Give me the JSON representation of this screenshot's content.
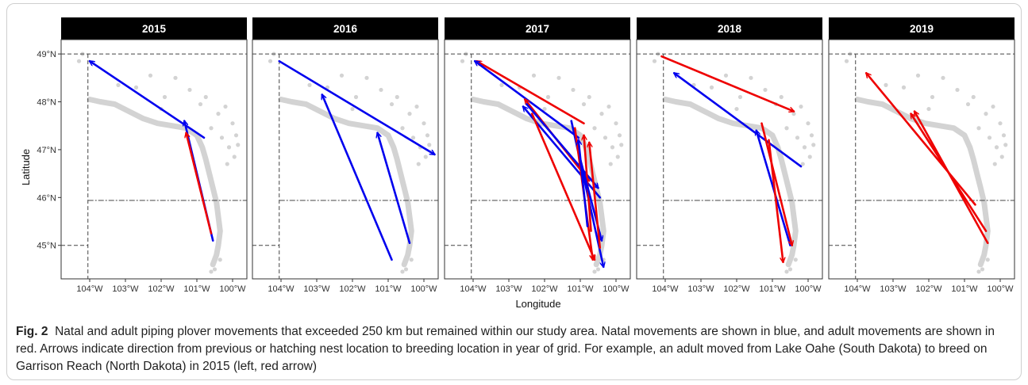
{
  "chart_data": {
    "type": "faceted-map-arrows",
    "xlabel": "Longitude",
    "ylabel": "Latitude",
    "xlim": [
      -104.8,
      -99.6
    ],
    "ylim": [
      44.3,
      49.3
    ],
    "x_ticks": [
      -104,
      -103,
      -102,
      -101,
      -100
    ],
    "x_tick_labels": [
      "104°W",
      "103°W",
      "102°W",
      "101°W",
      "100°W"
    ],
    "y_ticks": [
      45,
      46,
      47,
      48,
      49
    ],
    "y_tick_labels": [
      "45°N",
      "46°N",
      "47°N",
      "48°N",
      "49°N"
    ],
    "series": [
      {
        "name": "Natal",
        "color": "#0000ee"
      },
      {
        "name": "Adult",
        "color": "#ee0000"
      }
    ],
    "boundaries": {
      "north": {
        "lat": 49.0
      },
      "nd_sd": {
        "lat": 45.94,
        "lon_start": -104.05
      },
      "sd_ne": {
        "lat": 45.0,
        "lon_end": -104.05
      },
      "mt_west": {
        "lon": -104.05
      }
    },
    "panels": [
      {
        "year": "2015",
        "arrows": [
          {
            "type": "natal",
            "from": [
              -100.8,
              47.25
            ],
            "to": [
              -104.0,
              48.85
            ]
          },
          {
            "type": "natal",
            "from": [
              -100.55,
              45.1
            ],
            "to": [
              -101.35,
              47.6
            ]
          },
          {
            "type": "adult",
            "from": [
              -100.6,
              45.25
            ],
            "to": [
              -101.3,
              47.35
            ]
          }
        ]
      },
      {
        "year": "2016",
        "arrows": [
          {
            "type": "natal",
            "from": [
              -104.05,
              48.85
            ],
            "to": [
              -99.7,
              46.9
            ]
          },
          {
            "type": "natal",
            "from": [
              -100.9,
              44.7
            ],
            "to": [
              -102.85,
              48.15
            ]
          },
          {
            "type": "natal",
            "from": [
              -100.4,
              45.05
            ],
            "to": [
              -101.3,
              47.35
            ]
          }
        ]
      },
      {
        "year": "2017",
        "arrows": [
          {
            "type": "adult",
            "from": [
              -100.9,
              47.55
            ],
            "to": [
              -103.9,
              48.85
            ]
          },
          {
            "type": "natal",
            "from": [
              -101.05,
              47.25
            ],
            "to": [
              -103.95,
              48.85
            ]
          },
          {
            "type": "adult",
            "from": [
              -100.75,
              46.35
            ],
            "to": [
              -102.55,
              48.05
            ]
          },
          {
            "type": "natal",
            "from": [
              -100.45,
              46.0
            ],
            "to": [
              -102.6,
              47.9
            ]
          },
          {
            "type": "adult",
            "from": [
              -102.35,
              47.75
            ],
            "to": [
              -100.6,
              44.7
            ]
          },
          {
            "type": "natal",
            "from": [
              -101.25,
              47.6
            ],
            "to": [
              -100.35,
              44.55
            ]
          },
          {
            "type": "natal",
            "from": [
              -102.5,
              47.95
            ],
            "to": [
              -100.5,
              46.2
            ]
          },
          {
            "type": "adult",
            "from": [
              -101.15,
              47.45
            ],
            "to": [
              -100.65,
              44.7
            ]
          },
          {
            "type": "adult",
            "from": [
              -100.7,
              45.3
            ],
            "to": [
              -100.9,
              47.3
            ]
          },
          {
            "type": "natal",
            "from": [
              -100.8,
              45.4
            ],
            "to": [
              -101.05,
              47.2
            ]
          },
          {
            "type": "natal",
            "from": [
              -101.0,
              46.8
            ],
            "to": [
              -100.4,
              45.1
            ]
          },
          {
            "type": "adult",
            "from": [
              -100.45,
              44.95
            ],
            "to": [
              -100.75,
              47.15
            ]
          }
        ]
      },
      {
        "year": "2018",
        "arrows": [
          {
            "type": "adult",
            "from": [
              -104.1,
              48.95
            ],
            "to": [
              -100.4,
              47.8
            ]
          },
          {
            "type": "natal",
            "from": [
              -100.2,
              46.65
            ],
            "to": [
              -103.75,
              48.6
            ]
          },
          {
            "type": "natal",
            "from": [
              -100.5,
              45.0
            ],
            "to": [
              -101.45,
              47.4
            ]
          },
          {
            "type": "adult",
            "from": [
              -101.3,
              47.55
            ],
            "to": [
              -100.45,
              45.0
            ]
          },
          {
            "type": "adult",
            "from": [
              -101.1,
              47.2
            ],
            "to": [
              -100.7,
              44.65
            ]
          }
        ]
      },
      {
        "year": "2019",
        "arrows": [
          {
            "type": "adult",
            "from": [
              -100.7,
              45.85
            ],
            "to": [
              -103.75,
              48.6
            ]
          },
          {
            "type": "adult",
            "from": [
              -100.35,
              45.05
            ],
            "to": [
              -102.4,
              47.8
            ]
          },
          {
            "type": "adult",
            "from": [
              -100.4,
              45.3
            ],
            "to": [
              -102.5,
              47.75
            ]
          }
        ]
      }
    ]
  },
  "caption": {
    "label": "Fig. 2",
    "text": "Natal and adult piping plover movements that exceeded 250 km but remained within our study area. Natal movements are shown in blue, and adult movements are shown in red. Arrows indicate direction from previous or hatching nest location to breeding location in year of grid. For example, an adult moved from Lake Oahe (South Dakota) to breed on Garrison Reach (North Dakota) in 2015 (left, red arrow)"
  }
}
